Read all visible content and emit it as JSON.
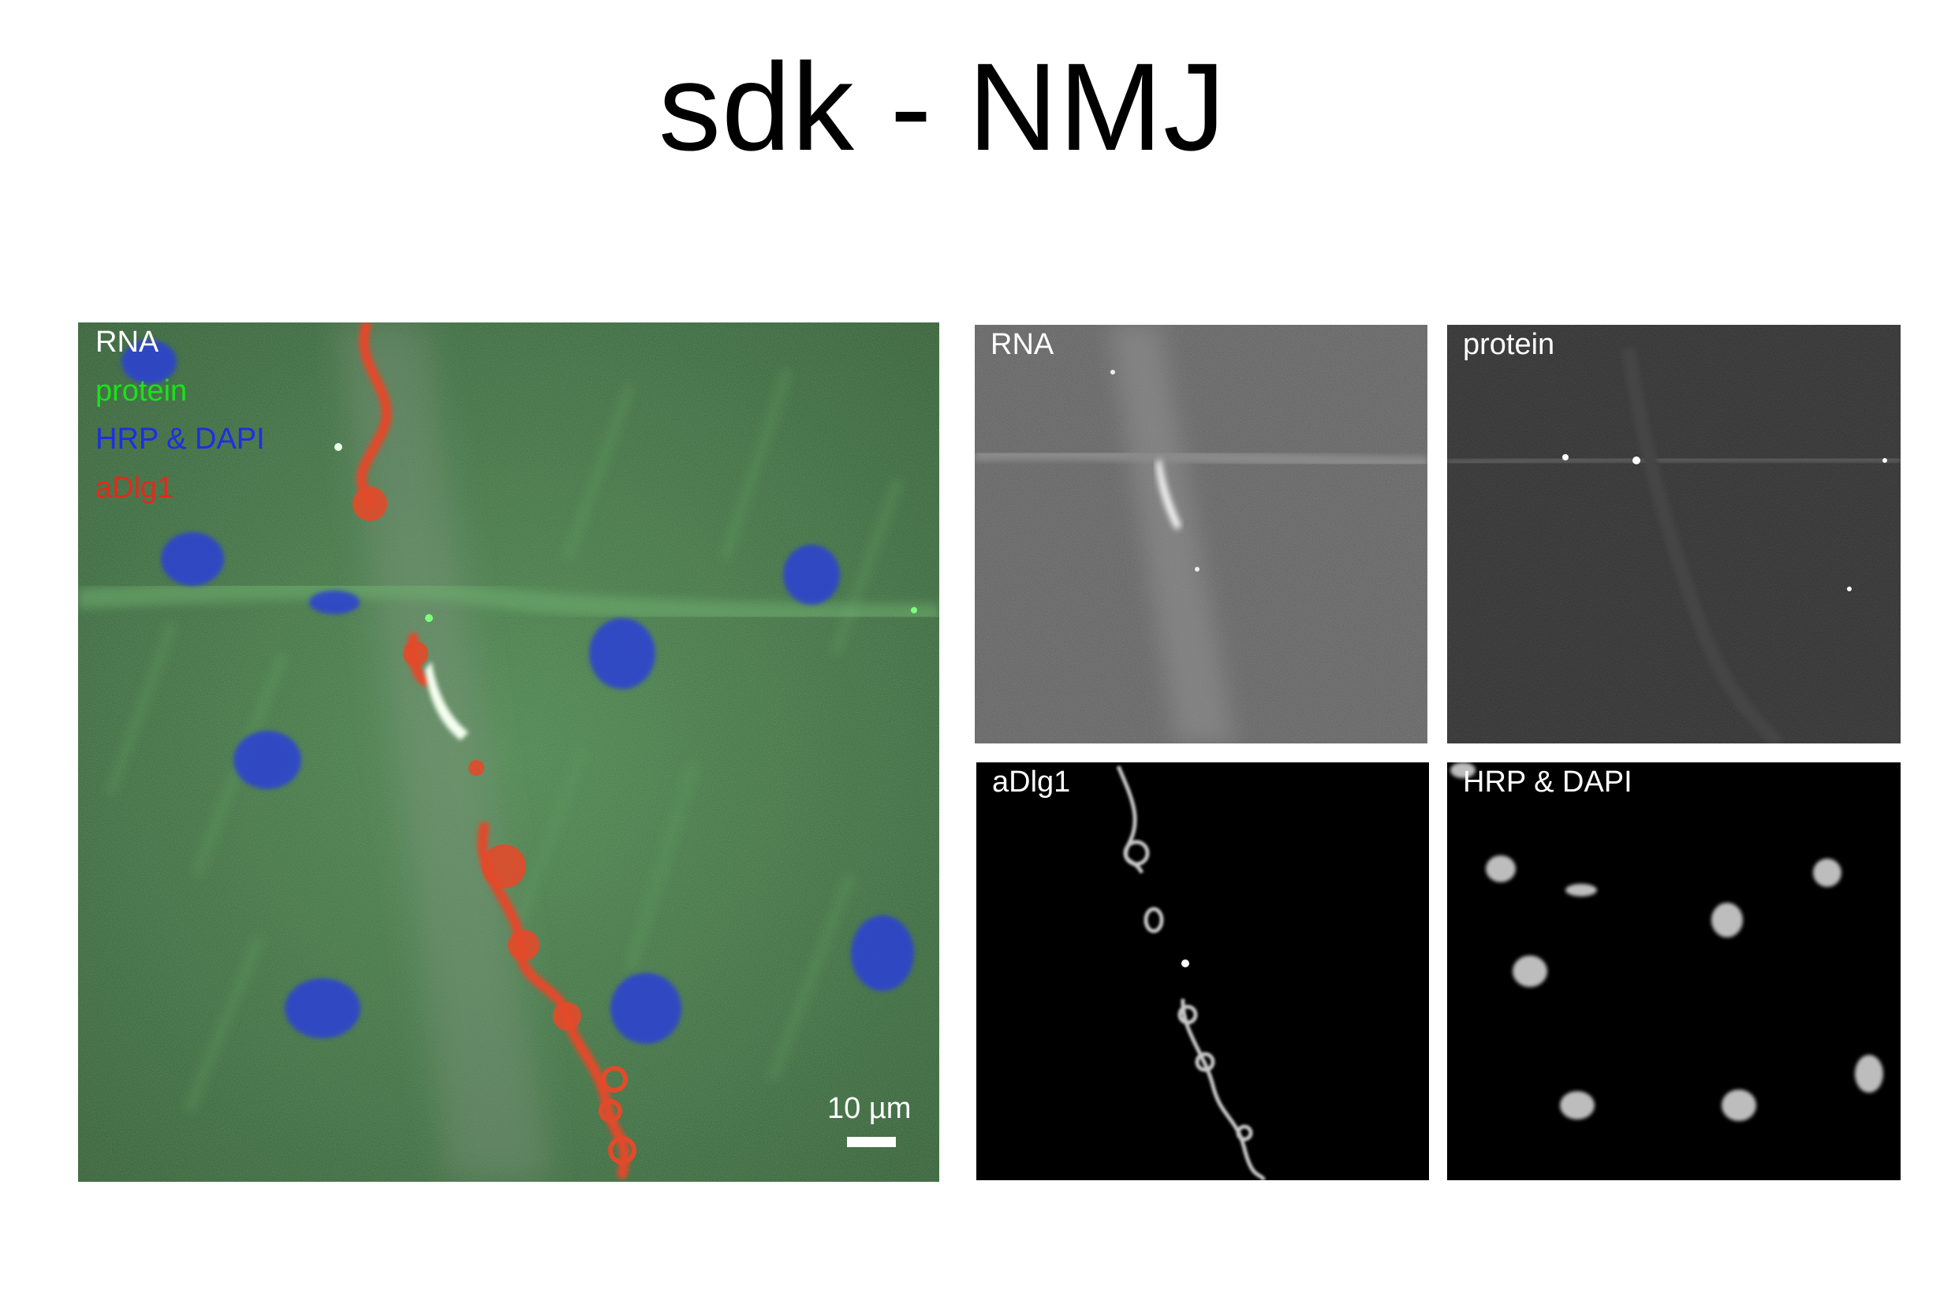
{
  "title": "sdk - NMJ",
  "merged": {
    "legend": [
      {
        "text": "RNA",
        "color": "#ffffff"
      },
      {
        "text": "protein",
        "color": "#19e319"
      },
      {
        "text": "HRP & DAPI",
        "color": "#1d2ee6"
      },
      {
        "text": "aDlg1",
        "color": "#e22a1a"
      }
    ],
    "scale_label": "10 µm"
  },
  "panels": {
    "rna": "RNA",
    "protein": "protein",
    "dlg": "aDlg1",
    "hrp": "HRP & DAPI"
  }
}
